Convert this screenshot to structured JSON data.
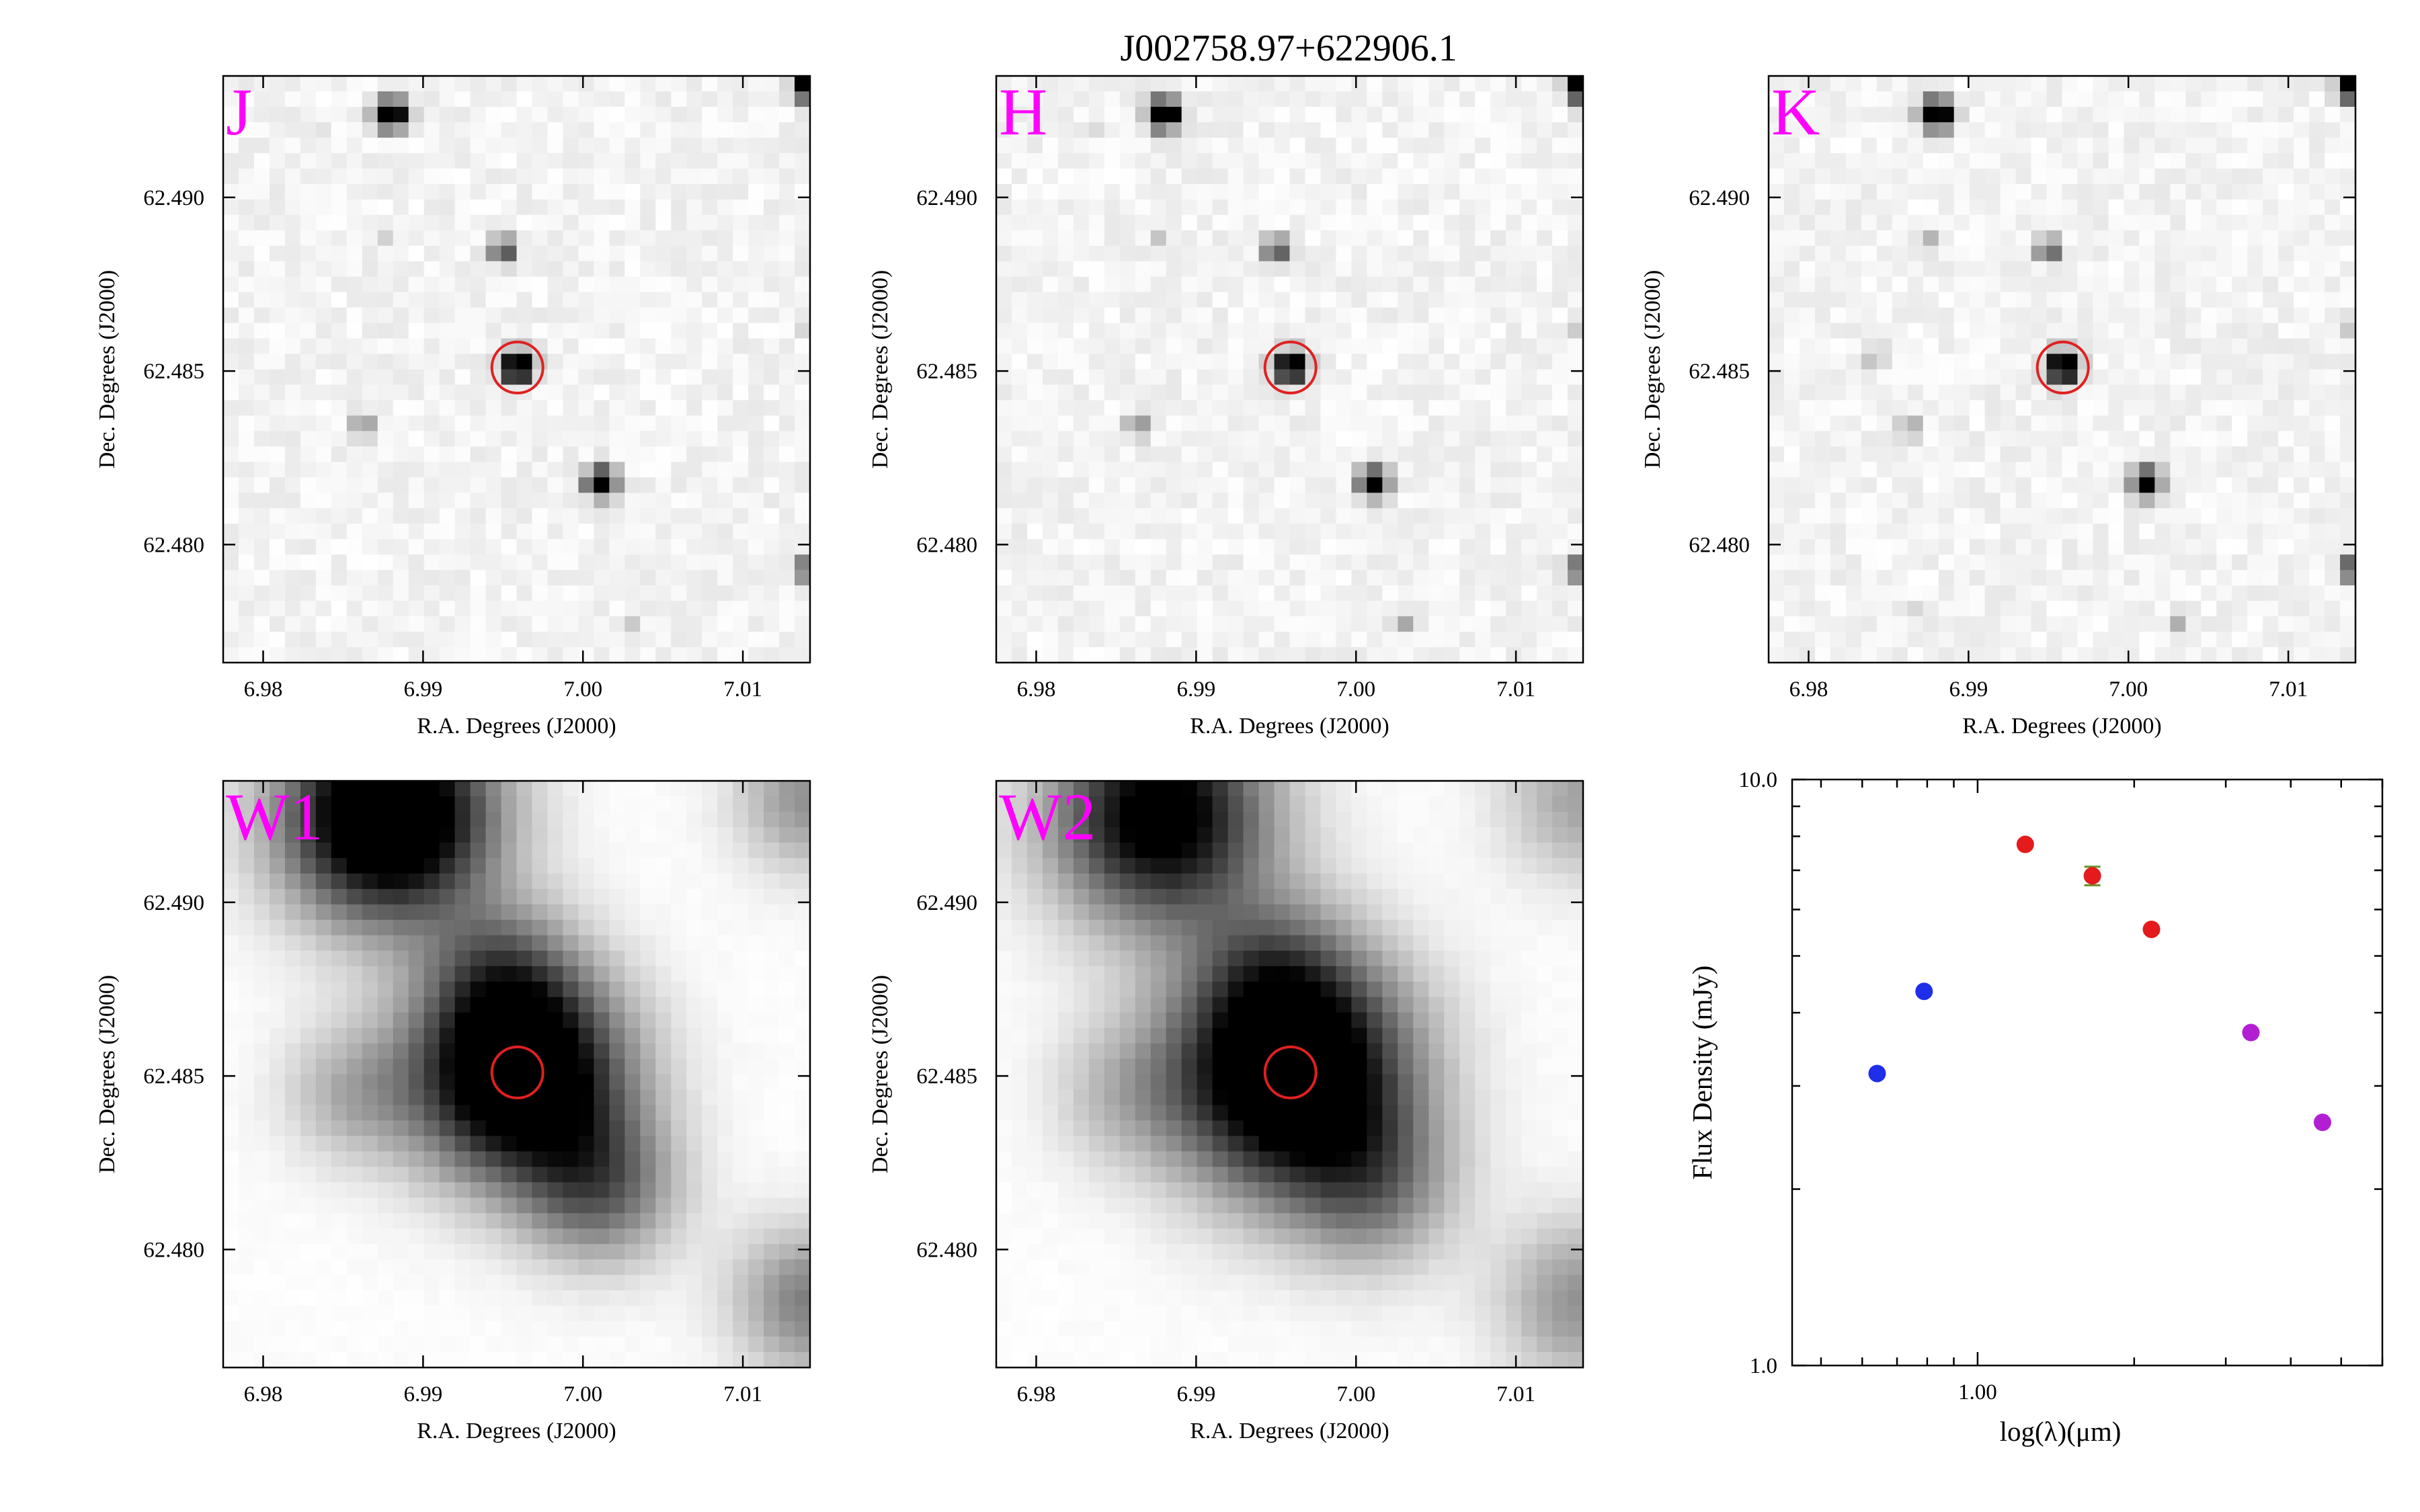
{
  "figure_title": "J002758.97+622906.1",
  "colors": {
    "band_label": "#ff00ff",
    "aperture": "#e02020",
    "sed_2mass": "#e41a1c",
    "sed_optical": "#1f2ee8",
    "sed_wise": "#b21fd2"
  },
  "chart_data": [
    {
      "type": "heatmap",
      "band": "J",
      "xlabel": "R.A. Degrees (J2000)",
      "ylabel": "Dec. Degrees (J2000)",
      "xlim": [
        6.9775,
        7.0142
      ],
      "ylim": [
        62.4766,
        62.4935
      ],
      "xticks": [
        "6.98",
        "6.99",
        "7.00",
        "7.01"
      ],
      "yticks": [
        "62.480",
        "62.485",
        "62.490"
      ],
      "target": {
        "ra": 6.9959,
        "dec": 62.4851
      },
      "psf_blur": 1.0,
      "sources": [
        {
          "ra": 6.988,
          "dec": 62.4924,
          "flux": 1.0
        },
        {
          "ra": 6.995,
          "dec": 62.4885,
          "flux": 0.6
        },
        {
          "ra": 6.9959,
          "dec": 62.4851,
          "flux": 1.0
        },
        {
          "ra": 6.9863,
          "dec": 62.4834,
          "flux": 0.35
        },
        {
          "ra": 7.0011,
          "dec": 62.4818,
          "flux": 0.9
        },
        {
          "ra": 7.0142,
          "dec": 62.4932,
          "flux": 1.0
        },
        {
          "ra": 7.014,
          "dec": 62.4793,
          "flux": 0.5
        },
        {
          "ra": 7.014,
          "dec": 62.4863,
          "flux": 0.15
        },
        {
          "ra": 7.003,
          "dec": 62.4777,
          "flux": 0.15
        },
        {
          "ra": 6.9877,
          "dec": 62.4888,
          "flux": 0.1
        },
        {
          "ra": 6.9833,
          "dec": 62.492,
          "flux": 0.1
        }
      ]
    },
    {
      "type": "heatmap",
      "band": "H",
      "xlabel": "R.A. Degrees (J2000)",
      "ylabel": "Dec. Degrees (J2000)",
      "xlim": [
        6.9775,
        7.0142
      ],
      "ylim": [
        62.4766,
        62.4935
      ],
      "xticks": [
        "6.98",
        "6.99",
        "7.00",
        "7.01"
      ],
      "yticks": [
        "62.480",
        "62.485",
        "62.490"
      ],
      "target": {
        "ra": 6.9959,
        "dec": 62.4851
      },
      "psf_blur": 1.0,
      "sources": [
        {
          "ra": 6.988,
          "dec": 62.4924,
          "flux": 1.0
        },
        {
          "ra": 6.995,
          "dec": 62.4885,
          "flux": 0.55
        },
        {
          "ra": 6.9959,
          "dec": 62.4851,
          "flux": 1.0
        },
        {
          "ra": 6.9863,
          "dec": 62.4834,
          "flux": 0.35
        },
        {
          "ra": 7.0011,
          "dec": 62.4818,
          "flux": 0.85
        },
        {
          "ra": 7.0142,
          "dec": 62.4932,
          "flux": 1.0
        },
        {
          "ra": 7.014,
          "dec": 62.4793,
          "flux": 0.5
        },
        {
          "ra": 7.014,
          "dec": 62.4863,
          "flux": 0.15
        },
        {
          "ra": 7.003,
          "dec": 62.4777,
          "flux": 0.2
        },
        {
          "ra": 6.9877,
          "dec": 62.4888,
          "flux": 0.12
        },
        {
          "ra": 6.9833,
          "dec": 62.492,
          "flux": 0.1
        }
      ]
    },
    {
      "type": "heatmap",
      "band": "K",
      "xlabel": "R.A. Degrees (J2000)",
      "ylabel": "Dec. Degrees (J2000)",
      "xlim": [
        6.9775,
        7.0142
      ],
      "ylim": [
        62.4766,
        62.4935
      ],
      "xticks": [
        "6.98",
        "6.99",
        "7.00",
        "7.01"
      ],
      "yticks": [
        "62.480",
        "62.485",
        "62.490"
      ],
      "target": {
        "ra": 6.9959,
        "dec": 62.4851
      },
      "psf_blur": 1.0,
      "sources": [
        {
          "ra": 6.988,
          "dec": 62.4924,
          "flux": 1.0
        },
        {
          "ra": 6.995,
          "dec": 62.4885,
          "flux": 0.55
        },
        {
          "ra": 6.9959,
          "dec": 62.4851,
          "flux": 1.0
        },
        {
          "ra": 6.9863,
          "dec": 62.4834,
          "flux": 0.3
        },
        {
          "ra": 6.9842,
          "dec": 62.4854,
          "flux": 0.2
        },
        {
          "ra": 7.0011,
          "dec": 62.4818,
          "flux": 0.85
        },
        {
          "ra": 7.0142,
          "dec": 62.4932,
          "flux": 1.0
        },
        {
          "ra": 7.014,
          "dec": 62.4793,
          "flux": 0.6
        },
        {
          "ra": 7.014,
          "dec": 62.4863,
          "flux": 0.2
        },
        {
          "ra": 7.003,
          "dec": 62.4777,
          "flux": 0.2
        },
        {
          "ra": 6.9877,
          "dec": 62.4888,
          "flux": 0.15
        },
        {
          "ra": 6.9863,
          "dec": 62.478,
          "flux": 0.12
        }
      ]
    },
    {
      "type": "heatmap",
      "band": "W1",
      "xlabel": "R.A. Degrees (J2000)",
      "ylabel": "Dec. Degrees (J2000)",
      "xlim": [
        6.9775,
        7.0142
      ],
      "ylim": [
        62.4766,
        62.4935
      ],
      "xticks": [
        "6.98",
        "6.99",
        "7.00",
        "7.01"
      ],
      "yticks": [
        "62.480",
        "62.485",
        "62.490"
      ],
      "target": {
        "ra": 6.9959,
        "dec": 62.4851
      },
      "psf_blur": 3.0,
      "sources": [
        {
          "ra": 6.9878,
          "dec": 62.4925,
          "flux": 1.0
        },
        {
          "ra": 6.9959,
          "dec": 62.4851,
          "flux": 1.0
        },
        {
          "ra": 6.995,
          "dec": 62.488,
          "flux": 0.25
        },
        {
          "ra": 7.0011,
          "dec": 62.4818,
          "flux": 0.4
        },
        {
          "ra": 6.9855,
          "dec": 62.4845,
          "flux": 0.2
        },
        {
          "ra": 7.0142,
          "dec": 62.493,
          "flux": 0.3
        },
        {
          "ra": 7.0142,
          "dec": 62.4785,
          "flux": 0.35
        }
      ]
    },
    {
      "type": "heatmap",
      "band": "W2",
      "xlabel": "R.A. Degrees (J2000)",
      "ylabel": "Dec. Degrees (J2000)",
      "xlim": [
        6.9775,
        7.0142
      ],
      "ylim": [
        62.4766,
        62.4935
      ],
      "xticks": [
        "6.98",
        "6.99",
        "7.00",
        "7.01"
      ],
      "yticks": [
        "62.480",
        "62.485",
        "62.490"
      ],
      "target": {
        "ra": 6.9959,
        "dec": 62.4851
      },
      "psf_blur": 3.2,
      "sources": [
        {
          "ra": 6.9878,
          "dec": 62.4925,
          "flux": 0.8
        },
        {
          "ra": 6.9959,
          "dec": 62.4851,
          "flux": 1.0
        },
        {
          "ra": 6.995,
          "dec": 62.488,
          "flux": 0.2
        },
        {
          "ra": 7.0011,
          "dec": 62.4818,
          "flux": 0.3
        },
        {
          "ra": 6.9855,
          "dec": 62.4845,
          "flux": 0.15
        },
        {
          "ra": 7.0142,
          "dec": 62.493,
          "flux": 0.25
        },
        {
          "ra": 7.0142,
          "dec": 62.4785,
          "flux": 0.3
        }
      ]
    },
    {
      "type": "scatter",
      "xlabel": "log(λ)(μm)",
      "ylabel": "Flux Density (mJy)",
      "xscale": "log",
      "yscale": "log",
      "xlim": [
        0.44,
        6.0
      ],
      "ylim": [
        1.0,
        10.0
      ],
      "xtick_labels": [
        "1.00"
      ],
      "ytick_labels": [
        "1.0",
        "10.0"
      ],
      "series": [
        {
          "group": "optical",
          "color_key": "sed_optical",
          "x": [
            0.641,
            0.789
          ],
          "y": [
            3.15,
            4.35
          ],
          "yerr": [
            0.0,
            0.0
          ]
        },
        {
          "group": "2mass",
          "color_key": "sed_2mass",
          "x": [
            1.235,
            1.662,
            2.159
          ],
          "y": [
            7.75,
            6.85,
            5.55
          ],
          "yerr": [
            0.0,
            0.25,
            0.0
          ]
        },
        {
          "group": "wise",
          "color_key": "sed_wise",
          "x": [
            3.353,
            4.603
          ],
          "y": [
            3.7,
            2.6
          ],
          "yerr": [
            0.0,
            0.0
          ]
        }
      ]
    }
  ]
}
